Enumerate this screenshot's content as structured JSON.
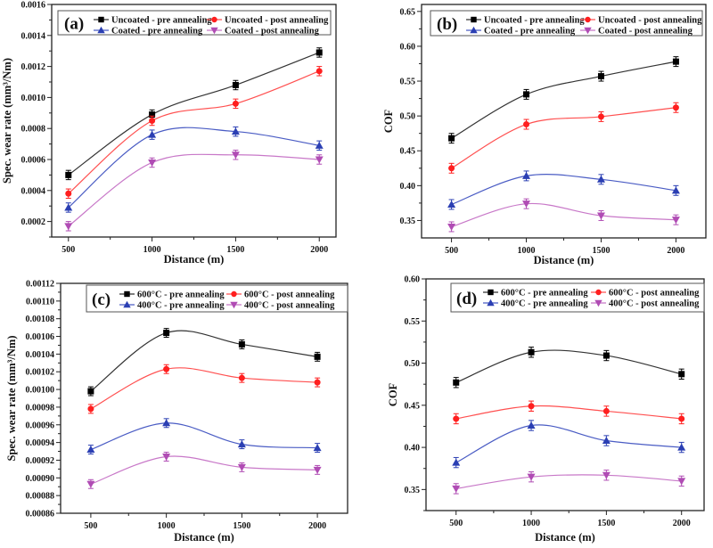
{
  "chart_data": [
    {
      "type": "line",
      "panel_label": "(a)",
      "xlabel": "Distance (m)",
      "ylabel": "Spec. wear rate (mm³/Nm)",
      "x": [
        500,
        1000,
        1500,
        2000
      ],
      "xticks": [
        "500",
        "1000",
        "1500",
        "2000"
      ],
      "xlim": [
        400,
        2100
      ],
      "ylim": [
        0.0001,
        0.0016
      ],
      "yticks": [
        "0.0002",
        "0.0004",
        "0.0006",
        "0.0008",
        "0.0010",
        "0.0012",
        "0.0014",
        "0.0016"
      ],
      "error": 3e-05,
      "legend_placement": "top",
      "series": [
        {
          "name": "Uncoated - pre annealing",
          "marker": "square",
          "color": "#000000",
          "line_color": "#333333",
          "values": [
            0.0005,
            0.00089,
            0.00108,
            0.00129
          ]
        },
        {
          "name": "Uncoated - post annealing",
          "marker": "circle",
          "color": "#ff1f1f",
          "line_color": "#ff5050",
          "values": [
            0.00038,
            0.00085,
            0.00096,
            0.00117
          ]
        },
        {
          "name": "Coated - pre annealing",
          "marker": "triangle-up",
          "color": "#2b3fb3",
          "line_color": "#4a5cc4",
          "values": [
            0.00029,
            0.00076,
            0.00078,
            0.00069
          ]
        },
        {
          "name": "Coated - post annealing",
          "marker": "triangle-down",
          "color": "#b04cb4",
          "line_color": "#c878c8",
          "values": [
            0.00017,
            0.00058,
            0.00063,
            0.0006
          ]
        }
      ]
    },
    {
      "type": "line",
      "panel_label": "(b)",
      "xlabel": "Distance (m)",
      "ylabel": "COF",
      "x": [
        500,
        1000,
        1500,
        2000
      ],
      "xticks": [
        "500",
        "1000",
        "1500",
        "2000"
      ],
      "xlim": [
        300,
        2200
      ],
      "ylim": [
        0.325,
        0.66
      ],
      "yticks": [
        "0.35",
        "0.40",
        "0.45",
        "0.50",
        "0.55",
        "0.60",
        "0.65"
      ],
      "error": 0.007,
      "legend_placement": "top",
      "series": [
        {
          "name": "Uncoated - pre annealing",
          "marker": "square",
          "color": "#000000",
          "line_color": "#333333",
          "values": [
            0.468,
            0.531,
            0.557,
            0.578
          ]
        },
        {
          "name": "Uncoated - post annealing",
          "marker": "circle",
          "color": "#ff1f1f",
          "line_color": "#ff5050",
          "values": [
            0.425,
            0.488,
            0.499,
            0.512
          ]
        },
        {
          "name": "Coated - pre annealing",
          "marker": "triangle-up",
          "color": "#2b3fb3",
          "line_color": "#4a5cc4",
          "values": [
            0.373,
            0.414,
            0.409,
            0.393
          ]
        },
        {
          "name": "Coated - post annealing",
          "marker": "triangle-down",
          "color": "#b04cb4",
          "line_color": "#c878c8",
          "values": [
            0.341,
            0.374,
            0.357,
            0.351
          ]
        }
      ]
    },
    {
      "type": "line",
      "panel_label": "(c)",
      "xlabel": "Distance (m)",
      "ylabel": "Spec. wear rate (mm³/Nm)",
      "x": [
        500,
        1000,
        1500,
        2000
      ],
      "xticks": [
        "500",
        "1000",
        "1500",
        "2000"
      ],
      "xlim": [
        300,
        2200
      ],
      "ylim": [
        0.00086,
        0.00112
      ],
      "yticks": [
        "0.00086",
        "0.00088",
        "0.00090",
        "0.00092",
        "0.00094",
        "0.00096",
        "0.00098",
        "0.00100",
        "0.00102",
        "0.00104",
        "0.00106",
        "0.00108",
        "0.00110",
        "0.00112"
      ],
      "error": 5e-06,
      "legend_placement": "top",
      "series": [
        {
          "name": "600°C - pre annealing",
          "marker": "square",
          "color": "#000000",
          "line_color": "#333333",
          "values": [
            0.000998,
            0.001064,
            0.001051,
            0.001037
          ]
        },
        {
          "name": "600°C - post annealing",
          "marker": "circle",
          "color": "#ff1f1f",
          "line_color": "#ff5050",
          "values": [
            0.000978,
            0.001023,
            0.001013,
            0.001008
          ]
        },
        {
          "name": "400°C - pre annealing",
          "marker": "triangle-up",
          "color": "#2b3fb3",
          "line_color": "#4a5cc4",
          "values": [
            0.000932,
            0.000962,
            0.000938,
            0.000934
          ]
        },
        {
          "name": "400°C - post annealing",
          "marker": "triangle-down",
          "color": "#b04cb4",
          "line_color": "#c878c8",
          "values": [
            0.000893,
            0.000924,
            0.000912,
            0.000909
          ]
        }
      ]
    },
    {
      "type": "line",
      "panel_label": "(d)",
      "xlabel": "Distance (m)",
      "ylabel": "COF",
      "x": [
        500,
        1000,
        1500,
        2000
      ],
      "xticks": [
        "500",
        "1000",
        "1500",
        "2000"
      ],
      "xlim": [
        300,
        2150
      ],
      "ylim": [
        0.325,
        0.6
      ],
      "yticks": [
        "0.35",
        "0.40",
        "0.45",
        "0.50",
        "0.55",
        "0.60"
      ],
      "error": 0.006,
      "legend_placement": "top",
      "series": [
        {
          "name": "600°C - pre annealing",
          "marker": "square",
          "color": "#000000",
          "line_color": "#333333",
          "values": [
            0.477,
            0.513,
            0.509,
            0.487
          ]
        },
        {
          "name": "600°C - post annealing",
          "marker": "circle",
          "color": "#ff1f1f",
          "line_color": "#ff5050",
          "values": [
            0.434,
            0.449,
            0.443,
            0.434
          ]
        },
        {
          "name": "400°C - pre annealing",
          "marker": "triangle-up",
          "color": "#2b3fb3",
          "line_color": "#4a5cc4",
          "values": [
            0.382,
            0.426,
            0.408,
            0.4
          ]
        },
        {
          "name": "400°C - post annealing",
          "marker": "triangle-down",
          "color": "#b04cb4",
          "line_color": "#c878c8",
          "values": [
            0.351,
            0.365,
            0.367,
            0.36
          ]
        }
      ]
    }
  ]
}
